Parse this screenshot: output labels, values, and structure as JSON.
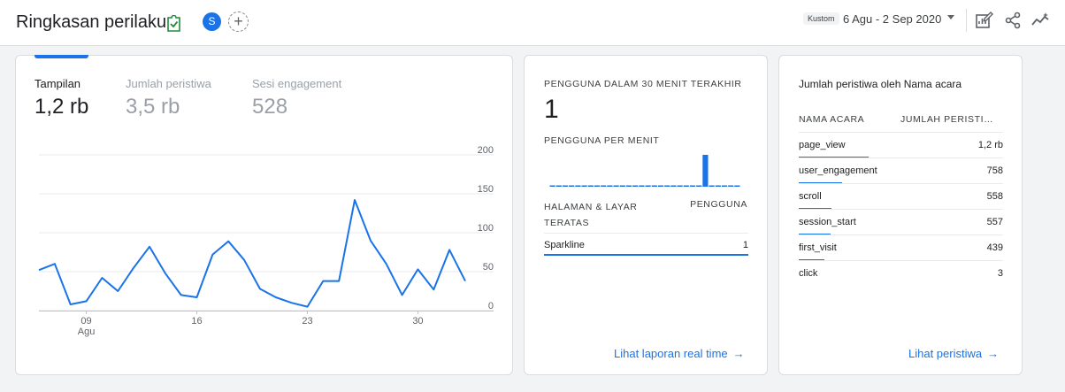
{
  "header": {
    "title": "Ringkasan perilaku",
    "segment_initial": "S",
    "add_symbol": "+",
    "date_badge": "Kustom",
    "date_range": "6 Agu - 2 Sep 2020",
    "icons": [
      "verified-report-icon",
      "customize-report-icon",
      "share-icon",
      "insights-icon"
    ]
  },
  "overview": {
    "metrics": [
      {
        "label": "Tampilan",
        "value": "1,2 rb",
        "active": true
      },
      {
        "label": "Jumlah peristiwa",
        "value": "3,5 rb",
        "active": false
      },
      {
        "label": "Sesi engagement",
        "value": "528",
        "active": false
      }
    ],
    "chart_data": {
      "type": "line",
      "series": [
        {
          "values": [
            52,
            60,
            8,
            12,
            42,
            25,
            55,
            82,
            48,
            20,
            17,
            72,
            89,
            65,
            28,
            17,
            10,
            5,
            38,
            38,
            142,
            90,
            60,
            20,
            53,
            27,
            78,
            38
          ]
        }
      ],
      "ylim": [
        0,
        200
      ],
      "y_ticks": [
        "200",
        "150",
        "100",
        "50",
        "0"
      ],
      "x_ticks": [
        {
          "day_index": 3,
          "label": "09"
        },
        {
          "day_index": 10,
          "label": "16"
        },
        {
          "day_index": 17,
          "label": "23"
        },
        {
          "day_index": 24,
          "label": "30"
        }
      ],
      "x_month_label": "Agu",
      "grid": true,
      "line_color": "#1a73e8"
    }
  },
  "realtime": {
    "title": "PENGGUNA DALAM 30 MENIT TERAKHIR",
    "value": "1",
    "per_minute_label": "PENGGUNA PER MENIT",
    "per_minute": [
      0,
      0,
      0,
      0,
      0,
      0,
      0,
      0,
      0,
      0,
      0,
      0,
      0,
      0,
      0,
      0,
      0,
      0,
      0,
      0,
      0,
      0,
      0,
      0,
      1,
      0,
      0,
      0,
      0,
      0
    ],
    "table_header_left_1": "HALAMAN & LAYAR",
    "table_header_left_2": "TERATAS",
    "table_header_right": "PENGGUNA",
    "rows": [
      {
        "name": "Sparkline",
        "value": "1",
        "share": 1.0
      }
    ],
    "link": "Lihat laporan real time",
    "arrow": "→"
  },
  "events": {
    "title": "Jumlah peristiwa oleh Nama acara",
    "header_name": "NAMA ACARA",
    "header_count": "JUMLAH PERISTI…",
    "rows": [
      {
        "name": "page_view",
        "value": "1,2 rb",
        "share": 1.0
      },
      {
        "name": "user_engagement",
        "value": "758",
        "share": 0.63
      },
      {
        "name": "scroll",
        "value": "558",
        "share": 0.47
      },
      {
        "name": "session_start",
        "value": "557",
        "share": 0.46
      },
      {
        "name": "first_visit",
        "value": "439",
        "share": 0.37
      },
      {
        "name": "click",
        "value": "3",
        "share": 0.0
      }
    ],
    "link": "Lihat peristiwa",
    "arrow": "→"
  }
}
